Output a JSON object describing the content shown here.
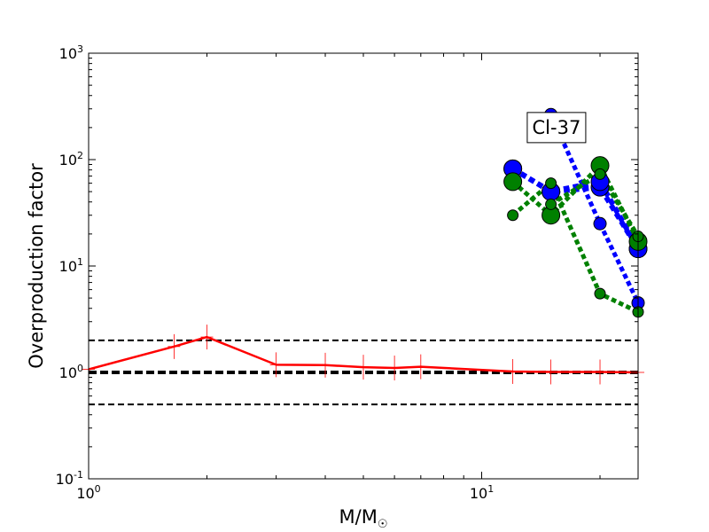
{
  "chart_data": {
    "type": "line",
    "title": "",
    "xlabel": "M/M",
    "xlabel_subscript": "☉",
    "ylabel": "Overproduction factor",
    "xscale": "log",
    "yscale": "log",
    "xlim": [
      1,
      25
    ],
    "ylim": [
      0.1,
      1000
    ],
    "grid": false,
    "legend": "none",
    "x_ticks": [
      {
        "value": 1,
        "base": "10",
        "exp": "0"
      },
      {
        "value": 10,
        "base": "10",
        "exp": "1"
      }
    ],
    "y_ticks": [
      {
        "value": 0.1,
        "base": "10",
        "exp": "-1"
      },
      {
        "value": 1,
        "base": "10",
        "exp": "0"
      },
      {
        "value": 10,
        "base": "10",
        "exp": "1"
      },
      {
        "value": 100,
        "base": "10",
        "exp": "2"
      },
      {
        "value": 1000,
        "base": "10",
        "exp": "3"
      }
    ],
    "annotations": [
      {
        "text": "Cl-37",
        "x": 15.5,
        "y": 200
      }
    ],
    "reference_lines": [
      {
        "y": 2.0,
        "style": "dashed",
        "color": "#000000",
        "width": 2
      },
      {
        "y": 1.0,
        "style": "dashed",
        "color": "#000000",
        "width": 4
      },
      {
        "y": 0.5,
        "style": "dashed",
        "color": "#000000",
        "width": 2
      }
    ],
    "series": [
      {
        "color": "#ff0000",
        "style": "solid",
        "width": 2.5,
        "marker": "plus",
        "x": [
          1.0,
          1.65,
          2.0,
          3.0,
          4.0,
          5.0,
          6.0,
          7.0,
          12.0,
          15.0,
          20.0,
          25.0
        ],
        "y": [
          1.07,
          1.75,
          2.15,
          1.18,
          1.17,
          1.12,
          1.1,
          1.13,
          1.02,
          1.01,
          1.01,
          1.0
        ]
      },
      {
        "color": "#0000ff",
        "style": "dotted",
        "width": 5,
        "marker": "circle",
        "marker_size": 7,
        "x": [
          15,
          20,
          25
        ],
        "y": [
          265,
          25,
          4.5
        ]
      },
      {
        "color": "#0000ff",
        "style": "dotted",
        "width": 6,
        "marker": "circle",
        "marker_size": 10,
        "x": [
          12,
          15,
          20,
          25
        ],
        "y": [
          82,
          50,
          55,
          14.5
        ]
      },
      {
        "color": "#0000ff",
        "style": "dotted",
        "width": 6,
        "marker": "circle",
        "marker_size": 10,
        "x": [
          12,
          15,
          20,
          25
        ],
        "y": [
          82,
          50,
          62,
          14.5
        ]
      },
      {
        "color": "#008000",
        "style": "dotted",
        "width": 5,
        "marker": "circle",
        "marker_size": 6,
        "x": [
          12,
          15,
          20,
          25
        ],
        "y": [
          30,
          60,
          5.5,
          3.7
        ]
      },
      {
        "color": "#008000",
        "style": "dotted",
        "width": 5,
        "marker": "circle",
        "marker_size": 10,
        "x": [
          12,
          15,
          20,
          25
        ],
        "y": [
          62,
          30,
          88,
          17
        ]
      },
      {
        "color": "#008000",
        "style": "dotted",
        "width": 5,
        "marker": "circle",
        "marker_size": 6,
        "x": [
          15,
          20,
          25
        ],
        "y": [
          38,
          73,
          19
        ]
      }
    ]
  }
}
